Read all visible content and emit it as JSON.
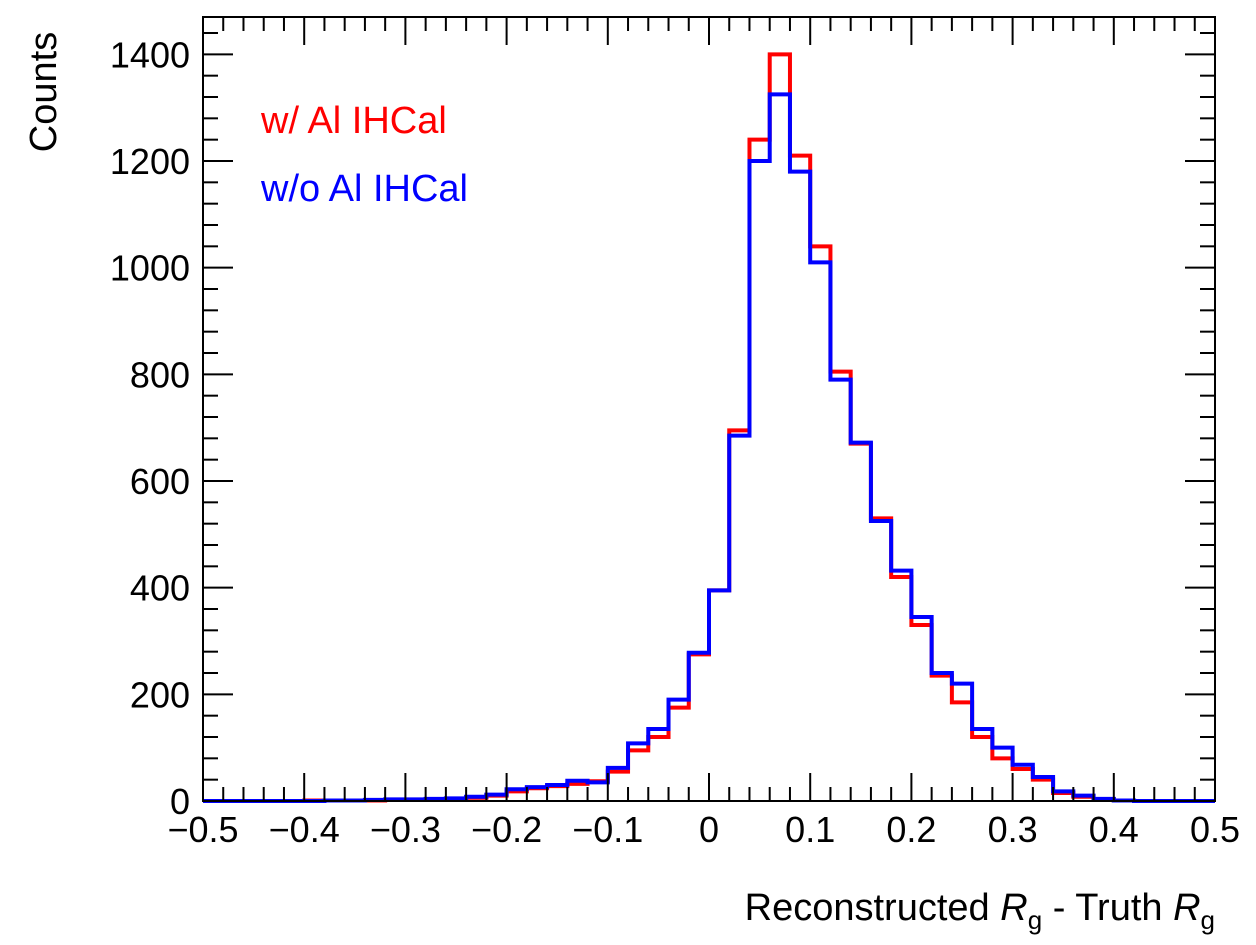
{
  "chart_data": {
    "type": "histogram",
    "xlabel": {
      "prefix": "Reconstructed ",
      "r1": "R",
      "sub1": "g",
      "mid": " - Truth ",
      "r2": "R",
      "sub2": "g"
    },
    "ylabel": "Counts",
    "xlim": [
      -0.5,
      0.5
    ],
    "ylim": [
      0,
      1470
    ],
    "xticks": [
      "−0.5",
      "−0.4",
      "−0.3",
      "−0.2",
      "−0.1",
      "0",
      "0.1",
      "0.2",
      "0.3",
      "0.4",
      "0.5"
    ],
    "yticks": [
      "0",
      "200",
      "400",
      "600",
      "800",
      "1000",
      "1200",
      "1400"
    ],
    "bin_edges_start": -0.5,
    "bin_width": 0.02,
    "legend_position": "top-left",
    "series": [
      {
        "name": "w/ Al IHCal",
        "color": "#ff0000",
        "values": [
          0,
          0,
          0,
          0,
          0,
          1,
          1,
          1,
          1,
          2,
          2,
          3,
          4,
          6,
          10,
          18,
          24,
          28,
          32,
          37,
          55,
          95,
          120,
          175,
          275,
          395,
          695,
          1240,
          1400,
          1210,
          1040,
          805,
          670,
          530,
          420,
          330,
          235,
          185,
          120,
          80,
          60,
          40,
          15,
          8,
          3,
          1,
          0,
          0,
          0,
          0
        ]
      },
      {
        "name": "w/o Al IHCal",
        "color": "#0000ff",
        "values": [
          0,
          0,
          0,
          0,
          0,
          0,
          1,
          1,
          2,
          3,
          3,
          4,
          5,
          8,
          12,
          22,
          26,
          30,
          38,
          35,
          62,
          108,
          135,
          190,
          278,
          395,
          685,
          1200,
          1325,
          1180,
          1010,
          790,
          672,
          525,
          432,
          345,
          240,
          220,
          135,
          100,
          68,
          45,
          18,
          10,
          4,
          1,
          0,
          0,
          0,
          0
        ]
      }
    ]
  }
}
